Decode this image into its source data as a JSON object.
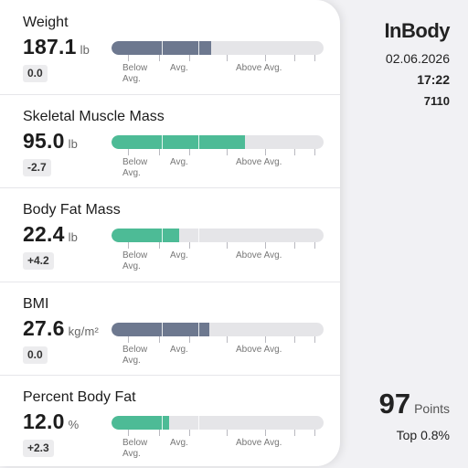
{
  "header": {
    "brand": "InBody",
    "date": "02.06.2026",
    "time": "17:22",
    "device": "7110"
  },
  "scale_labels": {
    "below": "Below\nAvg.",
    "avg": "Avg.",
    "above": "Above Avg."
  },
  "metrics": [
    {
      "label": "Weight",
      "value": "187.1",
      "unit": "lb",
      "delta": "0.0",
      "level": 0.47,
      "color": "gray"
    },
    {
      "label": "Skeletal Muscle Mass",
      "value": "95.0",
      "unit": "lb",
      "delta": "-2.7",
      "level": 0.63,
      "color": "green"
    },
    {
      "label": "Body Fat Mass",
      "value": "22.4",
      "unit": "lb",
      "delta": "+4.2",
      "level": 0.32,
      "color": "green"
    },
    {
      "label": "BMI",
      "value": "27.6",
      "unit": "kg/m²",
      "delta": "0.0",
      "level": 0.46,
      "color": "gray"
    },
    {
      "label": "Percent Body Fat",
      "value": "12.0",
      "unit": "%",
      "delta": "+2.3",
      "level": 0.27,
      "color": "green"
    }
  ],
  "score": {
    "value": "97",
    "unit": "Points",
    "rank": "Top 0.8%"
  },
  "colors": {
    "gray_fill": "#6d788f",
    "green_fill": "#4dbb96",
    "track": "#e5e5e8"
  }
}
